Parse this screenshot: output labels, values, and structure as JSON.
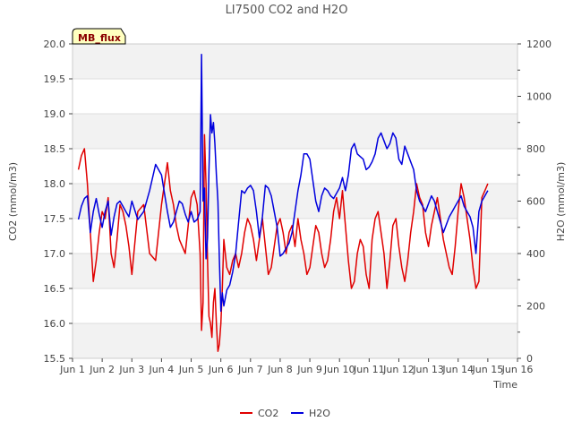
{
  "chart_data": {
    "type": "line",
    "title": "LI7500 CO2 and H2O",
    "badge": "MB_flux",
    "xlabel": "Time",
    "ylabel_left": "CO2 (mmol/m3)",
    "ylabel_right": "H2O (mmol/m3)",
    "xlim": [
      1,
      16
    ],
    "ylim_left": [
      15.5,
      20.0
    ],
    "ylim_right": [
      0,
      1200
    ],
    "x_tick_labels": [
      "Jun 1",
      "Jun 2",
      "Jun 3",
      "Jun 4",
      "Jun 5",
      "Jun 6",
      "Jun 7",
      "Jun 8",
      "Jun 9",
      "Jun 10",
      "Jun 11",
      "Jun 12",
      "Jun 13",
      "Jun 14",
      "Jun 15",
      "Jun 16"
    ],
    "y_left_ticks": [
      "15.5",
      "16.0",
      "16.5",
      "17.0",
      "17.5",
      "18.0",
      "18.5",
      "19.0",
      "19.5",
      "20.0"
    ],
    "y_right_ticks": [
      "0",
      "200",
      "400",
      "600",
      "800",
      "1000",
      "1200"
    ],
    "legend": [
      {
        "name": "CO2",
        "color": "#e00000"
      },
      {
        "name": "H2O",
        "color": "#0000dd"
      }
    ],
    "series": [
      {
        "name": "CO2",
        "axis": "left",
        "color": "#e00000",
        "x": [
          1.2,
          1.3,
          1.4,
          1.5,
          1.6,
          1.7,
          1.8,
          1.9,
          2.0,
          2.1,
          2.2,
          2.3,
          2.4,
          2.5,
          2.6,
          2.7,
          2.8,
          2.9,
          3.0,
          3.2,
          3.4,
          3.6,
          3.8,
          4.0,
          4.2,
          4.3,
          4.4,
          4.5,
          4.6,
          4.7,
          4.8,
          4.9,
          5.0,
          5.1,
          5.2,
          5.3,
          5.35,
          5.4,
          5.45,
          5.5,
          5.55,
          5.6,
          5.65,
          5.7,
          5.75,
          5.8,
          5.85,
          5.9,
          5.95,
          6.0,
          6.05,
          6.1,
          6.2,
          6.3,
          6.4,
          6.5,
          6.6,
          6.7,
          6.8,
          6.9,
          7.0,
          7.1,
          7.2,
          7.3,
          7.4,
          7.5,
          7.6,
          7.7,
          7.8,
          7.9,
          8.0,
          8.1,
          8.2,
          8.3,
          8.4,
          8.5,
          8.6,
          8.7,
          8.8,
          8.9,
          9.0,
          9.1,
          9.2,
          9.3,
          9.4,
          9.5,
          9.6,
          9.7,
          9.8,
          9.9,
          10.0,
          10.1,
          10.2,
          10.3,
          10.4,
          10.5,
          10.6,
          10.7,
          10.8,
          10.9,
          11.0,
          11.1,
          11.2,
          11.3,
          11.4,
          11.5,
          11.6,
          11.7,
          11.8,
          11.9,
          12.0,
          12.1,
          12.2,
          12.3,
          12.4,
          12.5,
          12.6,
          12.7,
          12.8,
          12.9,
          13.0,
          13.1,
          13.2,
          13.3,
          13.4,
          13.5,
          13.6,
          13.7,
          13.8,
          13.9,
          14.0,
          14.1,
          14.2,
          14.3,
          14.4,
          14.5,
          14.6,
          14.7,
          14.8,
          14.9,
          15.0
        ],
        "values": [
          18.2,
          18.4,
          18.5,
          18.0,
          17.3,
          16.6,
          16.9,
          17.3,
          17.6,
          17.5,
          17.8,
          17.0,
          16.8,
          17.2,
          17.7,
          17.6,
          17.4,
          17.1,
          16.7,
          17.6,
          17.7,
          17.0,
          16.9,
          17.7,
          18.3,
          17.9,
          17.7,
          17.4,
          17.2,
          17.1,
          17.0,
          17.4,
          17.8,
          17.9,
          17.7,
          17.0,
          15.9,
          16.3,
          18.7,
          18.0,
          16.9,
          16.1,
          16.0,
          15.8,
          16.3,
          16.5,
          16.0,
          15.6,
          15.7,
          16.0,
          16.5,
          17.2,
          16.8,
          16.7,
          16.9,
          17.0,
          16.8,
          17.0,
          17.3,
          17.5,
          17.4,
          17.2,
          16.9,
          17.2,
          17.5,
          17.1,
          16.7,
          16.8,
          17.1,
          17.4,
          17.5,
          17.3,
          17.0,
          17.3,
          17.4,
          17.1,
          17.5,
          17.2,
          17.0,
          16.7,
          16.8,
          17.1,
          17.4,
          17.3,
          17.0,
          16.8,
          16.9,
          17.2,
          17.6,
          17.8,
          17.5,
          17.9,
          17.4,
          16.9,
          16.5,
          16.6,
          17.0,
          17.2,
          17.1,
          16.7,
          16.5,
          17.2,
          17.5,
          17.6,
          17.3,
          17.0,
          16.5,
          16.9,
          17.4,
          17.5,
          17.1,
          16.8,
          16.6,
          16.9,
          17.3,
          17.6,
          18.0,
          17.8,
          17.7,
          17.3,
          17.1,
          17.4,
          17.6,
          17.8,
          17.5,
          17.2,
          17.0,
          16.8,
          16.7,
          17.1,
          17.6,
          18.0,
          17.8,
          17.5,
          17.2,
          16.8,
          16.5,
          16.6,
          17.8,
          17.9,
          18.0
        ]
      },
      {
        "name": "H2O",
        "axis": "right",
        "color": "#0000dd",
        "x": [
          1.2,
          1.3,
          1.4,
          1.5,
          1.6,
          1.7,
          1.8,
          1.9,
          2.0,
          2.1,
          2.2,
          2.3,
          2.4,
          2.5,
          2.6,
          2.7,
          2.8,
          2.9,
          3.0,
          3.2,
          3.4,
          3.6,
          3.8,
          4.0,
          4.2,
          4.3,
          4.4,
          4.5,
          4.6,
          4.7,
          4.8,
          4.9,
          5.0,
          5.1,
          5.2,
          5.3,
          5.35,
          5.4,
          5.45,
          5.5,
          5.55,
          5.6,
          5.65,
          5.7,
          5.75,
          5.8,
          5.85,
          5.9,
          5.95,
          6.0,
          6.05,
          6.1,
          6.2,
          6.3,
          6.4,
          6.5,
          6.6,
          6.7,
          6.8,
          6.9,
          7.0,
          7.1,
          7.2,
          7.3,
          7.4,
          7.5,
          7.6,
          7.7,
          7.8,
          7.9,
          8.0,
          8.1,
          8.2,
          8.3,
          8.4,
          8.5,
          8.6,
          8.7,
          8.8,
          8.9,
          9.0,
          9.1,
          9.2,
          9.3,
          9.4,
          9.5,
          9.6,
          9.7,
          9.8,
          9.9,
          10.0,
          10.1,
          10.2,
          10.3,
          10.4,
          10.5,
          10.6,
          10.7,
          10.8,
          10.9,
          11.0,
          11.1,
          11.2,
          11.3,
          11.4,
          11.5,
          11.6,
          11.7,
          11.8,
          11.9,
          12.0,
          12.1,
          12.2,
          12.3,
          12.4,
          12.5,
          12.6,
          12.7,
          12.8,
          12.9,
          13.0,
          13.1,
          13.2,
          13.3,
          13.4,
          13.5,
          13.6,
          13.7,
          13.8,
          13.9,
          14.0,
          14.1,
          14.2,
          14.3,
          14.4,
          14.5,
          14.6,
          14.7,
          14.8,
          14.9,
          15.0
        ],
        "values": [
          530,
          580,
          610,
          620,
          480,
          560,
          610,
          550,
          500,
          560,
          600,
          470,
          540,
          590,
          600,
          580,
          560,
          540,
          600,
          530,
          560,
          640,
          740,
          700,
          560,
          500,
          520,
          560,
          600,
          590,
          550,
          520,
          560,
          520,
          530,
          560,
          1160,
          600,
          650,
          380,
          460,
          720,
          930,
          860,
          900,
          820,
          700,
          600,
          380,
          180,
          250,
          200,
          260,
          280,
          330,
          400,
          520,
          640,
          630,
          650,
          660,
          640,
          560,
          460,
          540,
          660,
          650,
          620,
          560,
          500,
          390,
          400,
          420,
          440,
          480,
          560,
          640,
          700,
          780,
          780,
          760,
          680,
          600,
          560,
          620,
          650,
          640,
          620,
          610,
          630,
          650,
          690,
          640,
          700,
          800,
          820,
          780,
          770,
          760,
          720,
          730,
          750,
          780,
          840,
          860,
          830,
          800,
          820,
          860,
          840,
          760,
          740,
          810,
          780,
          750,
          720,
          640,
          600,
          580,
          560,
          590,
          620,
          600,
          560,
          520,
          480,
          510,
          540,
          560,
          580,
          600,
          620,
          580,
          560,
          540,
          500,
          400,
          560,
          600,
          620,
          640
        ]
      }
    ]
  }
}
